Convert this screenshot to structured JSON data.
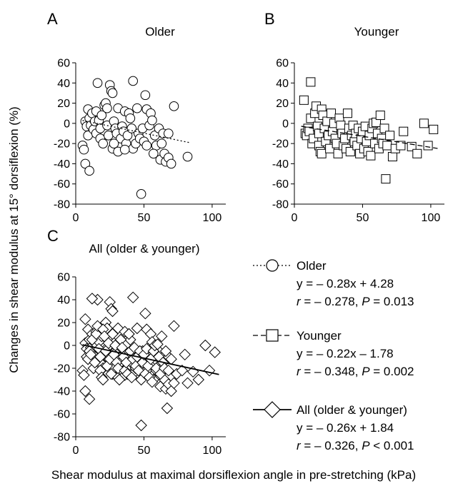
{
  "figure": {
    "ylabel": "Changes in shear modulus at 15° dorsiflexion (%)",
    "xlabel": "Shear modulus at maximal dorsiflexion angle in pre-stretching (kPa)"
  },
  "legend": [
    {
      "name": "Older",
      "marker": "circle",
      "line": "dotted",
      "eq": "y = – 0.28x + 4.28",
      "r_label": "r",
      "stats": " = – 0.278, ",
      "p_label": "P",
      "p_val": " = 0.013"
    },
    {
      "name": "Younger",
      "marker": "square",
      "line": "dashed",
      "eq": "y = – 0.22x – 1.78",
      "r_label": "r",
      "stats": " = – 0.348, ",
      "p_label": "P",
      "p_val": " = 0.002"
    },
    {
      "name": "All (older & younger)",
      "marker": "diamond",
      "line": "solid",
      "eq": "y = – 0.26x + 1.84",
      "r_label": "r",
      "stats": " = – 0.326, ",
      "p_label": "P",
      "p_val": " < 0.001"
    }
  ],
  "chart_data": [
    {
      "panel": "A",
      "title": "Older",
      "type": "scatter",
      "marker": "circle",
      "xlim": [
        0,
        110
      ],
      "ylim": [
        -80,
        60
      ],
      "xticks": [
        0,
        50,
        100
      ],
      "yticks": [
        -80,
        -60,
        -40,
        -20,
        0,
        20,
        40,
        60
      ],
      "trendline": {
        "style": "dotted",
        "slope": -0.28,
        "intercept": 4.28,
        "x_range": [
          5,
          83
        ]
      },
      "points": [
        [
          5,
          -22
        ],
        [
          6,
          -26
        ],
        [
          7,
          -40
        ],
        [
          7,
          2
        ],
        [
          8,
          -3
        ],
        [
          9,
          -12
        ],
        [
          9,
          14
        ],
        [
          10,
          -47
        ],
        [
          10,
          5
        ],
        [
          11,
          -2
        ],
        [
          12,
          10
        ],
        [
          13,
          -6
        ],
        [
          14,
          2
        ],
        [
          15,
          12
        ],
        [
          15,
          -10
        ],
        [
          16,
          40
        ],
        [
          17,
          3
        ],
        [
          18,
          -5
        ],
        [
          18,
          -15
        ],
        [
          19,
          8
        ],
        [
          20,
          -20
        ],
        [
          21,
          18
        ],
        [
          22,
          20
        ],
        [
          23,
          -2
        ],
        [
          24,
          -12
        ],
        [
          25,
          38
        ],
        [
          26,
          32
        ],
        [
          27,
          -25
        ],
        [
          27,
          30
        ],
        [
          28,
          2
        ],
        [
          29,
          -5
        ],
        [
          30,
          -10
        ],
        [
          31,
          -28
        ],
        [
          31,
          15
        ],
        [
          33,
          -15
        ],
        [
          34,
          -3
        ],
        [
          35,
          -8
        ],
        [
          36,
          12
        ],
        [
          37,
          -20
        ],
        [
          38,
          -12
        ],
        [
          39,
          10
        ],
        [
          40,
          5
        ],
        [
          41,
          -5
        ],
        [
          42,
          42
        ],
        [
          42,
          -25
        ],
        [
          44,
          -20
        ],
        [
          45,
          15
        ],
        [
          46,
          -10
        ],
        [
          47,
          -15
        ],
        [
          48,
          -70
        ],
        [
          49,
          -5
        ],
        [
          50,
          -18
        ],
        [
          51,
          28
        ],
        [
          52,
          14
        ],
        [
          52,
          -22
        ],
        [
          54,
          -2
        ],
        [
          55,
          10
        ],
        [
          56,
          3
        ],
        [
          58,
          -12
        ],
        [
          59,
          -22
        ],
        [
          61,
          -5
        ],
        [
          62,
          -36
        ],
        [
          63,
          -20
        ],
        [
          64,
          -10
        ],
        [
          65,
          -30
        ],
        [
          66,
          -38
        ],
        [
          68,
          -10
        ],
        [
          68,
          -34
        ],
        [
          70,
          -40
        ],
        [
          72,
          17
        ],
        [
          82,
          -33
        ],
        [
          23,
          15
        ],
        [
          28,
          -20
        ],
        [
          36,
          -26
        ],
        [
          57,
          -30
        ]
      ]
    },
    {
      "panel": "B",
      "title": "Younger",
      "type": "scatter",
      "marker": "square",
      "xlim": [
        0,
        110
      ],
      "ylim": [
        -80,
        60
      ],
      "xticks": [
        0,
        50,
        100
      ],
      "yticks": [
        -80,
        -60,
        -40,
        -20,
        0,
        20,
        40,
        60
      ],
      "trendline": {
        "style": "dashed",
        "slope": -0.22,
        "intercept": -1.78,
        "x_range": [
          5,
          105
        ]
      },
      "points": [
        [
          7,
          23
        ],
        [
          8,
          -10
        ],
        [
          9,
          -12
        ],
        [
          10,
          -5
        ],
        [
          11,
          -8
        ],
        [
          12,
          41
        ],
        [
          12,
          5
        ],
        [
          13,
          -20
        ],
        [
          14,
          -15
        ],
        [
          15,
          10
        ],
        [
          16,
          17
        ],
        [
          17,
          -3
        ],
        [
          18,
          -10
        ],
        [
          18,
          -22
        ],
        [
          19,
          -28
        ],
        [
          20,
          -30
        ],
        [
          20,
          14
        ],
        [
          21,
          8
        ],
        [
          22,
          -5
        ],
        [
          23,
          -18
        ],
        [
          24,
          2
        ],
        [
          25,
          -12
        ],
        [
          26,
          -25
        ],
        [
          27,
          10
        ],
        [
          28,
          -8
        ],
        [
          29,
          0
        ],
        [
          30,
          -15
        ],
        [
          31,
          -20
        ],
        [
          32,
          -30
        ],
        [
          33,
          5
        ],
        [
          34,
          -2
        ],
        [
          35,
          -10
        ],
        [
          36,
          -22
        ],
        [
          37,
          -15
        ],
        [
          38,
          -25
        ],
        [
          39,
          10
        ],
        [
          40,
          -5
        ],
        [
          41,
          -28
        ],
        [
          42,
          -12
        ],
        [
          43,
          -2
        ],
        [
          44,
          -18
        ],
        [
          45,
          -10
        ],
        [
          46,
          -22
        ],
        [
          47,
          -5
        ],
        [
          48,
          -30
        ],
        [
          49,
          -15
        ],
        [
          50,
          -8
        ],
        [
          51,
          -25
        ],
        [
          52,
          -3
        ],
        [
          53,
          -18
        ],
        [
          54,
          -28
        ],
        [
          55,
          -12
        ],
        [
          56,
          -32
        ],
        [
          57,
          -5
        ],
        [
          58,
          0
        ],
        [
          59,
          -20
        ],
        [
          60,
          1
        ],
        [
          61,
          -10
        ],
        [
          62,
          -25
        ],
        [
          63,
          8
        ],
        [
          64,
          -15
        ],
        [
          65,
          -20
        ],
        [
          66,
          -5
        ],
        [
          67,
          -55
        ],
        [
          68,
          -22
        ],
        [
          70,
          -12
        ],
        [
          72,
          -33
        ],
        [
          74,
          -25
        ],
        [
          78,
          -22
        ],
        [
          80,
          -8
        ],
        [
          86,
          -23
        ],
        [
          90,
          -30
        ],
        [
          95,
          0
        ],
        [
          98,
          -22
        ],
        [
          102,
          -6
        ]
      ]
    },
    {
      "panel": "C",
      "title": "All (older & younger)",
      "type": "scatter",
      "marker": "diamond",
      "xlim": [
        0,
        110
      ],
      "ylim": [
        -80,
        60
      ],
      "xticks": [
        0,
        50,
        100
      ],
      "yticks": [
        -80,
        -60,
        -40,
        -20,
        0,
        20,
        40,
        60
      ],
      "trendline": {
        "style": "solid",
        "slope": -0.26,
        "intercept": 1.84,
        "x_range": [
          5,
          105
        ]
      },
      "points": [
        [
          5,
          -22
        ],
        [
          6,
          -26
        ],
        [
          7,
          -40
        ],
        [
          7,
          2
        ],
        [
          8,
          -3
        ],
        [
          9,
          -12
        ],
        [
          9,
          14
        ],
        [
          10,
          -47
        ],
        [
          10,
          5
        ],
        [
          11,
          -2
        ],
        [
          12,
          10
        ],
        [
          13,
          -6
        ],
        [
          14,
          2
        ],
        [
          15,
          12
        ],
        [
          15,
          -10
        ],
        [
          16,
          40
        ],
        [
          17,
          3
        ],
        [
          18,
          -5
        ],
        [
          18,
          -15
        ],
        [
          19,
          8
        ],
        [
          20,
          -20
        ],
        [
          21,
          18
        ],
        [
          22,
          20
        ],
        [
          23,
          -2
        ],
        [
          24,
          -12
        ],
        [
          25,
          38
        ],
        [
          26,
          32
        ],
        [
          27,
          -25
        ],
        [
          27,
          30
        ],
        [
          28,
          2
        ],
        [
          29,
          -5
        ],
        [
          30,
          -10
        ],
        [
          31,
          -28
        ],
        [
          31,
          15
        ],
        [
          33,
          -15
        ],
        [
          34,
          -3
        ],
        [
          35,
          -8
        ],
        [
          36,
          12
        ],
        [
          37,
          -20
        ],
        [
          38,
          -12
        ],
        [
          39,
          10
        ],
        [
          40,
          5
        ],
        [
          41,
          -5
        ],
        [
          42,
          42
        ],
        [
          42,
          -25
        ],
        [
          44,
          -20
        ],
        [
          45,
          15
        ],
        [
          46,
          -10
        ],
        [
          47,
          -15
        ],
        [
          48,
          -70
        ],
        [
          49,
          -5
        ],
        [
          50,
          -18
        ],
        [
          51,
          28
        ],
        [
          52,
          14
        ],
        [
          52,
          -22
        ],
        [
          54,
          -2
        ],
        [
          55,
          10
        ],
        [
          56,
          3
        ],
        [
          58,
          -12
        ],
        [
          59,
          -22
        ],
        [
          61,
          -5
        ],
        [
          62,
          -36
        ],
        [
          63,
          -20
        ],
        [
          64,
          -10
        ],
        [
          65,
          -30
        ],
        [
          66,
          -38
        ],
        [
          68,
          -10
        ],
        [
          68,
          -34
        ],
        [
          70,
          -40
        ],
        [
          72,
          17
        ],
        [
          82,
          -33
        ],
        [
          23,
          15
        ],
        [
          28,
          -20
        ],
        [
          36,
          -26
        ],
        [
          57,
          -30
        ],
        [
          7,
          23
        ],
        [
          8,
          -10
        ],
        [
          9,
          -12
        ],
        [
          10,
          -5
        ],
        [
          11,
          -8
        ],
        [
          12,
          41
        ],
        [
          12,
          5
        ],
        [
          13,
          -20
        ],
        [
          14,
          -15
        ],
        [
          15,
          10
        ],
        [
          16,
          17
        ],
        [
          17,
          -3
        ],
        [
          18,
          -10
        ],
        [
          18,
          -22
        ],
        [
          19,
          -28
        ],
        [
          20,
          -30
        ],
        [
          20,
          14
        ],
        [
          21,
          8
        ],
        [
          22,
          -5
        ],
        [
          23,
          -18
        ],
        [
          24,
          2
        ],
        [
          25,
          -12
        ],
        [
          26,
          -25
        ],
        [
          27,
          10
        ],
        [
          28,
          -8
        ],
        [
          29,
          0
        ],
        [
          30,
          -15
        ],
        [
          31,
          -20
        ],
        [
          32,
          -30
        ],
        [
          33,
          5
        ],
        [
          34,
          -2
        ],
        [
          35,
          -10
        ],
        [
          36,
          -22
        ],
        [
          37,
          -15
        ],
        [
          38,
          -25
        ],
        [
          39,
          10
        ],
        [
          40,
          -5
        ],
        [
          41,
          -28
        ],
        [
          42,
          -12
        ],
        [
          43,
          -2
        ],
        [
          44,
          -18
        ],
        [
          45,
          -10
        ],
        [
          46,
          -22
        ],
        [
          47,
          -5
        ],
        [
          48,
          -30
        ],
        [
          49,
          -15
        ],
        [
          50,
          -8
        ],
        [
          51,
          -25
        ],
        [
          52,
          -3
        ],
        [
          53,
          -18
        ],
        [
          54,
          -28
        ],
        [
          55,
          -12
        ],
        [
          56,
          -32
        ],
        [
          57,
          -5
        ],
        [
          58,
          0
        ],
        [
          59,
          -20
        ],
        [
          60,
          1
        ],
        [
          61,
          -10
        ],
        [
          62,
          -25
        ],
        [
          63,
          8
        ],
        [
          64,
          -15
        ],
        [
          65,
          -20
        ],
        [
          66,
          -5
        ],
        [
          67,
          -55
        ],
        [
          68,
          -22
        ],
        [
          70,
          -12
        ],
        [
          72,
          -33
        ],
        [
          74,
          -25
        ],
        [
          78,
          -22
        ],
        [
          80,
          -8
        ],
        [
          86,
          -23
        ],
        [
          90,
          -30
        ],
        [
          95,
          0
        ],
        [
          98,
          -22
        ],
        [
          102,
          -6
        ]
      ]
    }
  ]
}
